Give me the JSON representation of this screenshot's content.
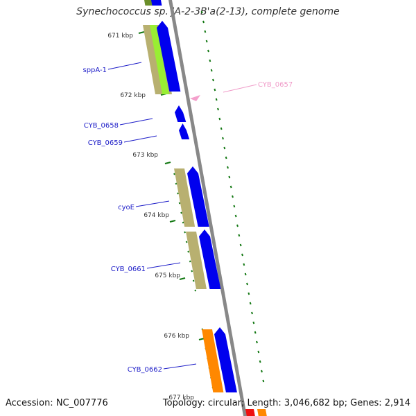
{
  "title": "Synechococcus sp. JA-2-3B'a(2-13), complete genome",
  "footer": {
    "accession": "Accession: NC_007776",
    "summary": "Topology: circular; Length: 3,046,682 bp; Genes: 2,914"
  },
  "ticks": [
    "671 kbp",
    "672 kbp",
    "673 kbp",
    "674 kbp",
    "675 kbp",
    "676 kbp",
    "677 kbp"
  ],
  "gene_labels": [
    {
      "id": "sppA-1",
      "text": "sppA-1",
      "color": "#1c1cc8"
    },
    {
      "id": "CYB_0657",
      "text": "CYB_0657",
      "color": "#f09ac8"
    },
    {
      "id": "CYB_0658",
      "text": "CYB_0658",
      "color": "#1c1cc8"
    },
    {
      "id": "CYB_0659",
      "text": "CYB_0659",
      "color": "#1c1cc8"
    },
    {
      "id": "cyoE",
      "text": "cyoE",
      "color": "#1c1cc8"
    },
    {
      "id": "CYB_0661",
      "text": "CYB_0661",
      "color": "#1c1cc8"
    },
    {
      "id": "CYB_0662",
      "text": "CYB_0662",
      "color": "#1c1cc8"
    }
  ],
  "colors": {
    "cds": "#0000ee",
    "gene": "#b8b070",
    "gene_top": "#6b8f2a",
    "green_feature": "#99ee33",
    "orange_feature": "#ff8800",
    "red_feature": "#ee1111",
    "pink_feature": "#f4a0cc",
    "backbone": "#888888",
    "gc_dash": "#117711",
    "leader": "#1c1cc8"
  }
}
